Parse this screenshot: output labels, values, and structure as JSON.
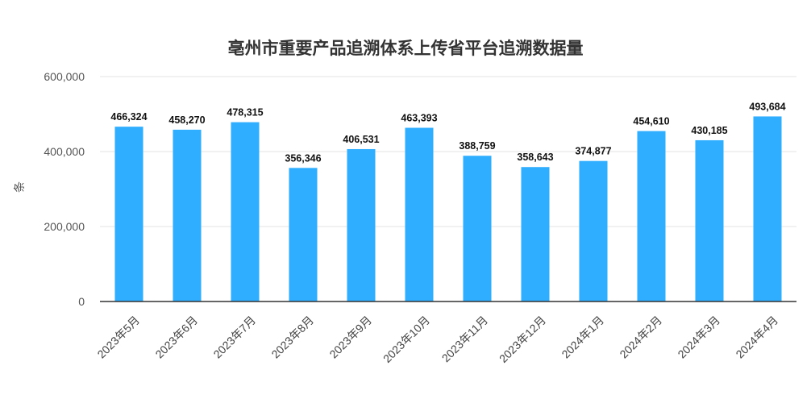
{
  "chart_data": {
    "type": "bar",
    "title": "亳州市重要产品追溯体系上传省平台追溯数据量",
    "ylabel": "条",
    "xlabel": "",
    "ylim": [
      0,
      600000
    ],
    "yticks": [
      "0",
      "200,000",
      "400,000",
      "600,000"
    ],
    "ytick_values": [
      0,
      200000,
      400000,
      600000
    ],
    "categories": [
      "2023年5月",
      "2023年6月",
      "2023年7月",
      "2023年8月",
      "2023年9月",
      "2023年10月",
      "2023年11月",
      "2023年12月",
      "2024年1月",
      "2024年2月",
      "2024年3月",
      "2024年4月"
    ],
    "values": [
      466324,
      458270,
      478315,
      356346,
      406531,
      463393,
      388759,
      358643,
      374877,
      454610,
      430185,
      493684
    ],
    "value_labels": [
      "466,324",
      "458,270",
      "478,315",
      "356,346",
      "406,531",
      "463,393",
      "388,759",
      "358,643",
      "374,877",
      "454,610",
      "430,185",
      "493,684"
    ],
    "bar_color": "#2fadff",
    "grid": true,
    "legend": "none"
  }
}
